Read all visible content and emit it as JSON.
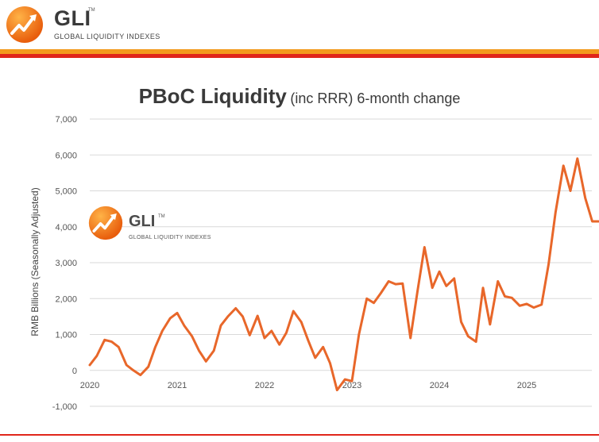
{
  "header": {
    "logo_text": "GLI",
    "logo_tm": "TM",
    "logo_subtitle": "GLOBAL LIQUIDITY INDEXES"
  },
  "watermark": {
    "logo_text": "GLI",
    "logo_tm": "TM",
    "logo_subtitle": "GLOBAL LIQUIDITY INDEXES"
  },
  "colors": {
    "accent_orange": "#f39a1e",
    "accent_red": "#e0261b",
    "line": "#e8672a",
    "grid": "#d9d9d9"
  },
  "chart_data": {
    "type": "line",
    "title": "PBoC Liquidity",
    "subtitle": "(inc RRR) 6-month change",
    "xlabel": "",
    "ylabel": "RMB Billions (Seasonally Adjusted)",
    "ylim": [
      -1000,
      7000
    ],
    "xlim": [
      2020.0,
      2025.82
    ],
    "yticks": [
      7000,
      6000,
      5000,
      4000,
      3000,
      2000,
      1000,
      0,
      -1000
    ],
    "ytick_labels": [
      "7,000",
      "6,000",
      "5,000",
      "4,000",
      "3,000",
      "2,000",
      "1,000",
      "0",
      "-1,000"
    ],
    "xticks": [
      2020,
      2021,
      2022,
      2023,
      2024,
      2025
    ],
    "xtick_labels": [
      "2020",
      "2021",
      "2022",
      "2023",
      "2024",
      "2025"
    ],
    "grid": "horizontal",
    "series": [
      {
        "name": "PBoC Liquidity 6-month change",
        "x": [
          2020.0,
          2020.08,
          2020.17,
          2020.25,
          2020.33,
          2020.42,
          2020.5,
          2020.58,
          2020.67,
          2020.75,
          2020.83,
          2020.92,
          2021.0,
          2021.08,
          2021.17,
          2021.25,
          2021.33,
          2021.42,
          2021.5,
          2021.58,
          2021.67,
          2021.75,
          2021.83,
          2021.92,
          2022.0,
          2022.08,
          2022.17,
          2022.25,
          2022.33,
          2022.42,
          2022.5,
          2022.58,
          2022.67,
          2022.75,
          2022.83,
          2022.92,
          2023.0,
          2023.08,
          2023.17,
          2023.25,
          2023.33,
          2023.42,
          2023.5,
          2023.58,
          2023.67,
          2023.75,
          2023.83,
          2023.92,
          2024.0,
          2024.08,
          2024.17,
          2024.25,
          2024.33,
          2024.42,
          2024.5,
          2024.58,
          2024.67,
          2024.75,
          2024.83,
          2024.92,
          2025.0,
          2025.08,
          2025.17,
          2025.25,
          2025.33,
          2025.42,
          2025.5,
          2025.58,
          2025.67,
          2025.75,
          2025.82
        ],
        "values": [
          150,
          400,
          850,
          800,
          650,
          150,
          0,
          -130,
          100,
          650,
          1100,
          1450,
          1600,
          1250,
          950,
          550,
          250,
          550,
          1250,
          1500,
          1730,
          1500,
          980,
          1520,
          900,
          1100,
          720,
          1050,
          1650,
          1350,
          830,
          350,
          650,
          200,
          -550,
          -250,
          -300,
          1000,
          2000,
          1880,
          2150,
          2480,
          2400,
          2420,
          900,
          2200,
          3430,
          2300,
          2750,
          2350,
          2560,
          1350,
          950,
          800,
          2300,
          1280,
          2480,
          2060,
          2020,
          1800,
          1850,
          1750,
          1830,
          2950,
          4400,
          5700,
          5000,
          5900,
          4800,
          4150,
          4150
        ]
      }
    ]
  }
}
